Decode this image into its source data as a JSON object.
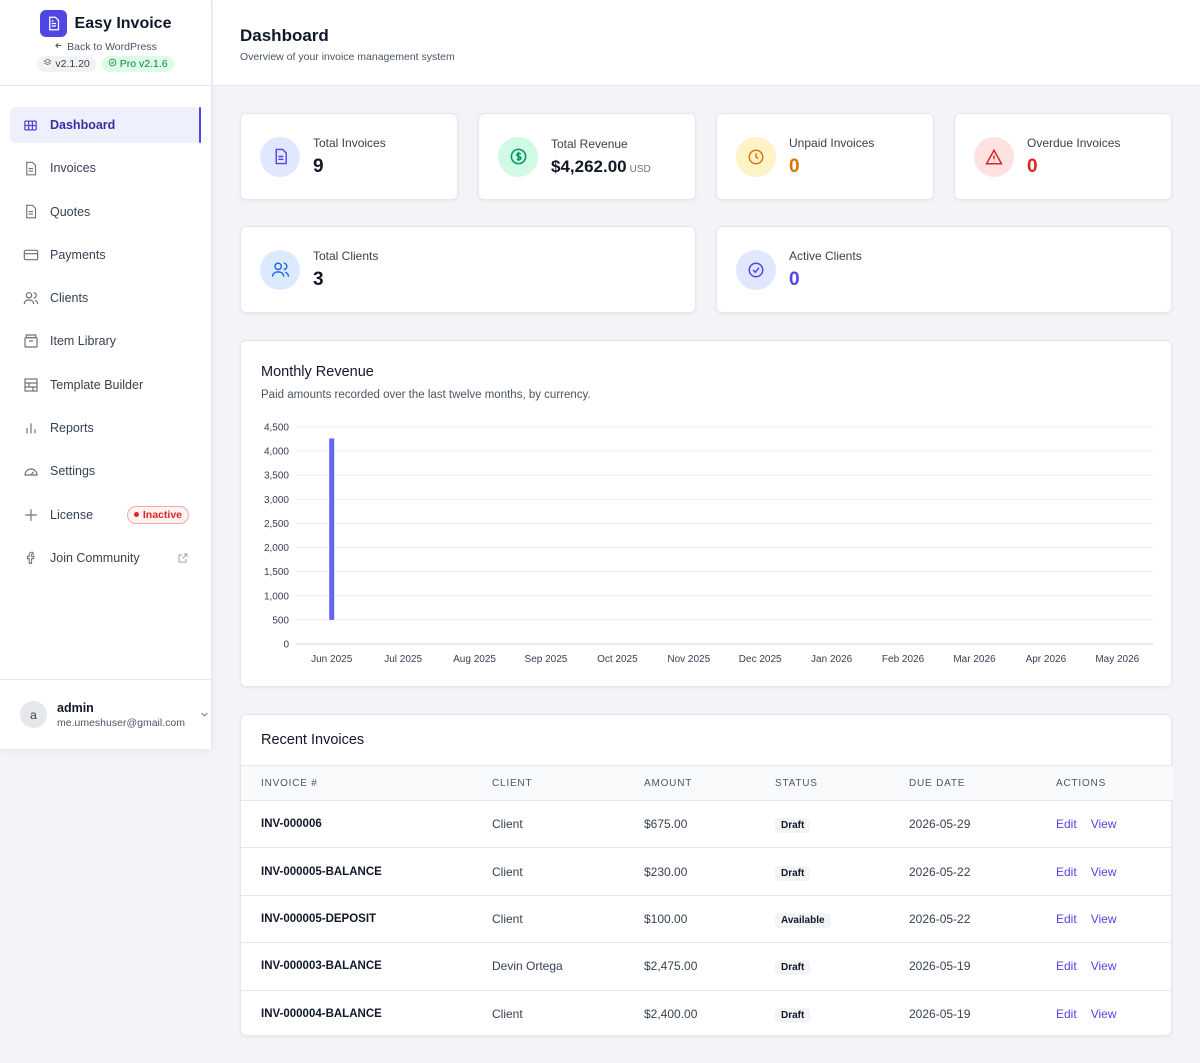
{
  "brand": {
    "name": "Easy Invoice",
    "back_link": "Back to WordPress",
    "version": "v2.1.20",
    "pro_version": "Pro v2.1.6"
  },
  "sidebar": {
    "items": [
      {
        "label": "Dashboard",
        "icon": "grid-icon",
        "active": true
      },
      {
        "label": "Invoices",
        "icon": "document-icon"
      },
      {
        "label": "Quotes",
        "icon": "document-icon"
      },
      {
        "label": "Payments",
        "icon": "credit-card-icon"
      },
      {
        "label": "Clients",
        "icon": "users-icon"
      },
      {
        "label": "Item Library",
        "icon": "archive-icon"
      },
      {
        "label": "Template Builder",
        "icon": "layout-icon"
      },
      {
        "label": "Reports",
        "icon": "bar-chart-icon"
      },
      {
        "label": "Settings",
        "icon": "gauge-icon"
      },
      {
        "label": "License",
        "icon": "sparkle-icon",
        "badge": "Inactive"
      },
      {
        "label": "Join Community",
        "icon": "facebook-icon",
        "external": true
      }
    ]
  },
  "user": {
    "initial": "a",
    "name": "admin",
    "email": "me.umeshuser@gmail.com"
  },
  "header": {
    "title": "Dashboard",
    "subtitle": "Overview of your invoice management system"
  },
  "stats": {
    "total_invoices": {
      "label": "Total Invoices",
      "value": "9"
    },
    "total_revenue": {
      "label": "Total Revenue",
      "value": "$4,262.00",
      "unit": "USD"
    },
    "unpaid_invoices": {
      "label": "Unpaid Invoices",
      "value": "0"
    },
    "overdue_invoices": {
      "label": "Overdue Invoices",
      "value": "0"
    },
    "total_clients": {
      "label": "Total Clients",
      "value": "3"
    },
    "active_clients": {
      "label": "Active Clients",
      "value": "0"
    }
  },
  "colors": {
    "accent": "#4f46e5",
    "unpaid": "#d97706",
    "overdue": "#dc2626",
    "revenue_icon": "#059669"
  },
  "chart_data": {
    "type": "bar",
    "title": "Monthly Revenue",
    "subtitle": "Paid amounts recorded over the last twelve months, by currency.",
    "categories": [
      "Jun 2025",
      "Jul 2025",
      "Aug 2025",
      "Sep 2025",
      "Oct 2025",
      "Nov 2025",
      "Dec 2025",
      "Jan 2026",
      "Feb 2026",
      "Mar 2026",
      "Apr 2026",
      "May 2026"
    ],
    "series": [
      {
        "values": [
          4262,
          0,
          0,
          0,
          0,
          0,
          0,
          0,
          0,
          0,
          0,
          0
        ]
      }
    ],
    "bar_baseline": 500,
    "ylim": [
      0,
      4500
    ],
    "yticks": [
      0,
      500,
      1000,
      1500,
      2000,
      2500,
      3000,
      3500,
      4000,
      4500
    ],
    "ytick_labels": [
      "0",
      "500",
      "1,000",
      "1,500",
      "2,000",
      "2,500",
      "3,000",
      "3,500",
      "4,000",
      "4,500"
    ],
    "grid": true,
    "bar_color": "#6366f1"
  },
  "recent_invoices": {
    "title": "Recent Invoices",
    "columns": [
      "INVOICE #",
      "CLIENT",
      "AMOUNT",
      "STATUS",
      "DUE DATE",
      "ACTIONS"
    ],
    "edit_label": "Edit",
    "view_label": "View",
    "rows": [
      {
        "number": "INV-000006",
        "client": "Client",
        "amount": "$675.00",
        "status": "Draft",
        "due": "2026-05-29"
      },
      {
        "number": "INV-000005-BALANCE",
        "client": "Client",
        "amount": "$230.00",
        "status": "Draft",
        "due": "2026-05-22"
      },
      {
        "number": "INV-000005-DEPOSIT",
        "client": "Client",
        "amount": "$100.00",
        "status": "Available",
        "due": "2026-05-22"
      },
      {
        "number": "INV-000003-BALANCE",
        "client": "Devin Ortega",
        "amount": "$2,475.00",
        "status": "Draft",
        "due": "2026-05-19"
      },
      {
        "number": "INV-000004-BALANCE",
        "client": "Client",
        "amount": "$2,400.00",
        "status": "Draft",
        "due": "2026-05-19"
      }
    ]
  }
}
